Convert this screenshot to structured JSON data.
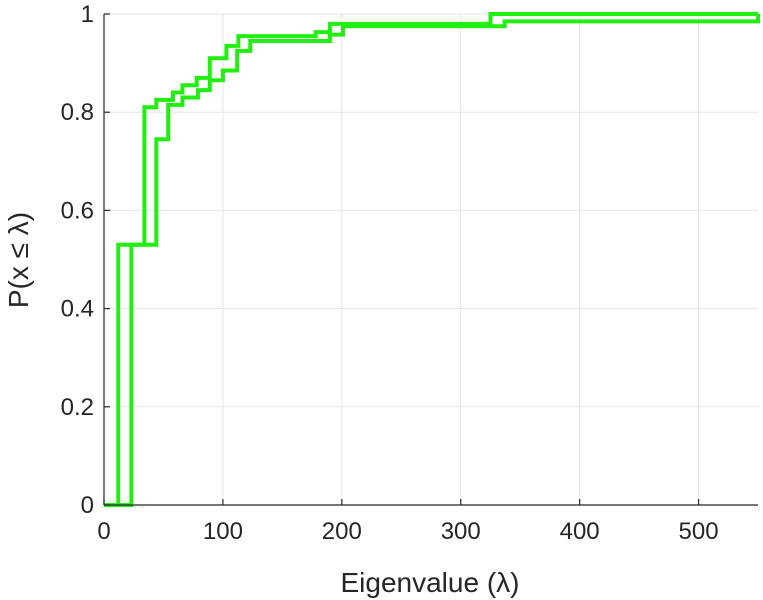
{
  "chart_data": {
    "type": "line",
    "subtype": "step-ecdf",
    "title": "",
    "xlabel": "Eigenvalue (λ)",
    "ylabel": "P(x ≤ λ)",
    "xlim": [
      0,
      550
    ],
    "ylim": [
      0,
      1
    ],
    "xticks": [
      0,
      100,
      200,
      300,
      400,
      500
    ],
    "yticks": [
      0,
      0.2,
      0.4,
      0.6,
      0.8,
      1
    ],
    "xtick_labels": [
      "0",
      "100",
      "200",
      "300",
      "400",
      "500"
    ],
    "ytick_labels": [
      "0",
      "0.2",
      "0.4",
      "0.6",
      "0.8",
      "1"
    ],
    "grid": true,
    "legend": "none",
    "series_color": "#22ee11",
    "series": [
      {
        "x": [
          0,
          12,
          34,
          44,
          58,
          66,
          78,
          89,
          103,
          113,
          178,
          190,
          325,
          550
        ],
        "y": [
          0,
          0.53,
          0.81,
          0.825,
          0.84,
          0.855,
          0.87,
          0.91,
          0.935,
          0.955,
          0.963,
          0.98,
          1.0,
          1.0
        ]
      },
      {
        "x": [
          0,
          23,
          44,
          54,
          66,
          79,
          89,
          100,
          112,
          123,
          190,
          201,
          337,
          550
        ],
        "y": [
          0,
          0.53,
          0.745,
          0.815,
          0.83,
          0.845,
          0.865,
          0.885,
          0.925,
          0.945,
          0.958,
          0.975,
          0.985,
          1.0
        ]
      }
    ]
  }
}
